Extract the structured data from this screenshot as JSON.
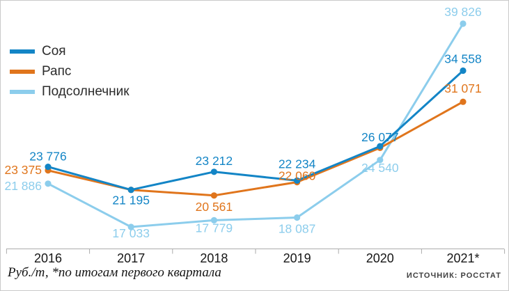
{
  "chart_data": {
    "type": "line",
    "categories": [
      "2016",
      "2017",
      "2018",
      "2019",
      "2020",
      "2021*"
    ],
    "title": "",
    "xlabel": "",
    "ylabel": "Руб./т",
    "ylim": [
      17033,
      39826
    ],
    "grid": false,
    "legend_position": "top-left",
    "series": [
      {
        "name": "Соя",
        "color": "#1385c6",
        "values": [
          23776,
          21195,
          23212,
          22234,
          26077,
          34558
        ],
        "labels": [
          "23 776",
          "21 195",
          "23 212",
          "22 234",
          "26 077",
          "34 558"
        ],
        "label_offsets": [
          [
            0,
            -9
          ],
          [
            0,
            21
          ],
          [
            0,
            -10
          ],
          [
            0,
            -18
          ],
          [
            0,
            -7
          ],
          [
            0,
            -11
          ]
        ],
        "label_anchors": [
          "middle",
          "middle",
          "middle",
          "middle",
          "middle",
          "middle"
        ]
      },
      {
        "name": "Рапс",
        "color": "#e0751c",
        "values": [
          23375,
          21195,
          20561,
          22060,
          25900,
          31071
        ],
        "labels": [
          "23 375",
          null,
          "20 561",
          "22 060",
          null,
          "31 071"
        ],
        "label_offsets": [
          [
            -9,
            5
          ],
          [
            0,
            0
          ],
          [
            0,
            22
          ],
          [
            0,
            -3
          ],
          [
            0,
            0
          ],
          [
            0,
            -13
          ]
        ],
        "label_anchors": [
          "end",
          "middle",
          "middle",
          "middle",
          "middle",
          "middle"
        ]
      },
      {
        "name": "Подсолнечник",
        "color": "#8ccdec",
        "values": [
          21886,
          17033,
          17779,
          18087,
          24540,
          39826
        ],
        "labels": [
          "21 886",
          "17 033",
          "17 779",
          "18 087",
          "24 540",
          "39 826"
        ],
        "label_offsets": [
          [
            -9,
            9
          ],
          [
            0,
            15
          ],
          [
            0,
            17
          ],
          [
            0,
            22
          ],
          [
            0,
            17
          ],
          [
            0,
            -11
          ]
        ],
        "label_anchors": [
          "end",
          "middle",
          "middle",
          "middle",
          "middle",
          "middle"
        ]
      }
    ]
  },
  "footer": {
    "footnote": "Руб./т, *по итогам первого квартала",
    "source": "ИСТОЧНИК: РОССТАТ"
  }
}
